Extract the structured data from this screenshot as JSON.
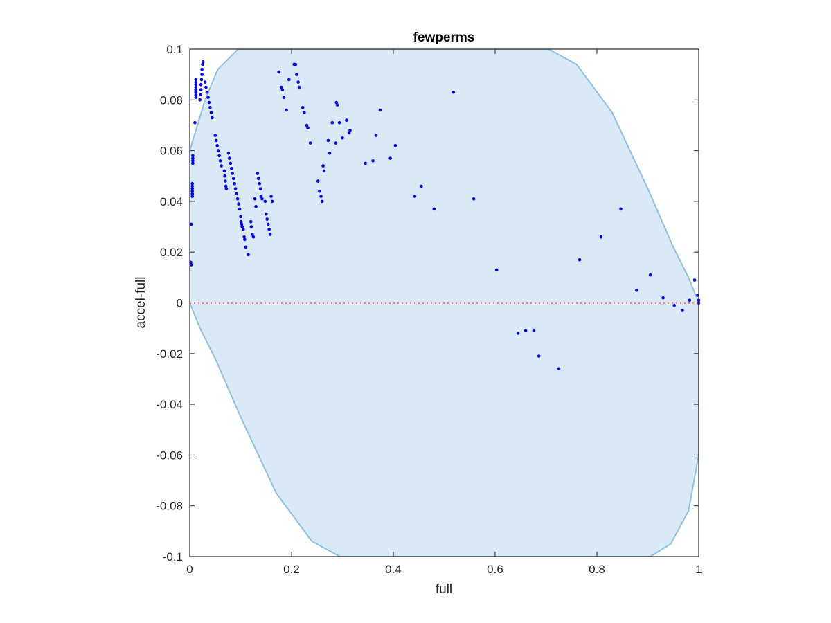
{
  "chart_data": {
    "type": "scatter",
    "title": "fewperms",
    "xlabel": "full",
    "ylabel": "accel-full",
    "xlim": [
      0,
      1
    ],
    "ylim": [
      -0.1,
      0.1
    ],
    "xticks": [
      0,
      0.2,
      0.4,
      0.6,
      0.8,
      1
    ],
    "xtick_labels": [
      "0",
      "0.2",
      "0.4",
      "0.6",
      "0.8",
      "1"
    ],
    "yticks": [
      -0.1,
      -0.08,
      -0.06,
      -0.04,
      -0.02,
      0,
      0.02,
      0.04,
      0.06,
      0.08,
      0.1
    ],
    "ytick_labels": [
      "-0.1",
      "-0.08",
      "-0.06",
      "-0.04",
      "-0.02",
      "0",
      "0.02",
      "0.04",
      "0.06",
      "0.08",
      "0.1"
    ],
    "grid": false,
    "colors": {
      "points": "#0000ee",
      "region_fill": "#d9e9f5",
      "region_edge": "#8dc0e2",
      "reference_line": "#e8403a",
      "axes": "#262626"
    },
    "reference_line": {
      "y": 0,
      "style": "dotted"
    },
    "region": {
      "description_free": true,
      "boundary": [
        [
          0.0,
          0.0
        ],
        [
          0.0,
          0.06
        ],
        [
          0.03,
          0.08
        ],
        [
          0.055,
          0.092
        ],
        [
          0.095,
          0.1
        ],
        [
          0.705,
          0.1
        ],
        [
          0.76,
          0.094
        ],
        [
          0.83,
          0.075
        ],
        [
          0.9,
          0.045
        ],
        [
          0.95,
          0.022
        ],
        [
          0.98,
          0.01
        ],
        [
          1.0,
          0.0
        ],
        [
          1.0,
          -0.06
        ],
        [
          0.98,
          -0.082
        ],
        [
          0.945,
          -0.095
        ],
        [
          0.905,
          -0.1
        ],
        [
          0.295,
          -0.1
        ],
        [
          0.24,
          -0.094
        ],
        [
          0.17,
          -0.075
        ],
        [
          0.1,
          -0.045
        ],
        [
          0.05,
          -0.022
        ],
        [
          0.02,
          -0.01
        ],
        [
          0.0,
          0.0
        ]
      ]
    },
    "series": [
      {
        "points": [
          [
            0.002,
            0.016
          ],
          [
            0.003,
            0.015
          ],
          [
            0.003,
            0.031
          ],
          [
            0.005,
            0.042
          ],
          [
            0.005,
            0.043
          ],
          [
            0.005,
            0.044
          ],
          [
            0.005,
            0.045
          ],
          [
            0.005,
            0.046
          ],
          [
            0.005,
            0.047
          ],
          [
            0.006,
            0.055
          ],
          [
            0.006,
            0.056
          ],
          [
            0.006,
            0.057
          ],
          [
            0.006,
            0.058
          ],
          [
            0.01,
            0.071
          ],
          [
            0.012,
            0.081
          ],
          [
            0.012,
            0.082
          ],
          [
            0.012,
            0.083
          ],
          [
            0.012,
            0.084
          ],
          [
            0.012,
            0.085
          ],
          [
            0.012,
            0.086
          ],
          [
            0.012,
            0.087
          ],
          [
            0.012,
            0.088
          ],
          [
            0.02,
            0.08
          ],
          [
            0.021,
            0.082
          ],
          [
            0.022,
            0.084
          ],
          [
            0.022,
            0.086
          ],
          [
            0.023,
            0.088
          ],
          [
            0.024,
            0.09
          ],
          [
            0.024,
            0.092
          ],
          [
            0.025,
            0.094
          ],
          [
            0.026,
            0.095
          ],
          [
            0.03,
            0.087
          ],
          [
            0.032,
            0.085
          ],
          [
            0.034,
            0.083
          ],
          [
            0.036,
            0.081
          ],
          [
            0.038,
            0.079
          ],
          [
            0.04,
            0.077
          ],
          [
            0.042,
            0.075
          ],
          [
            0.044,
            0.073
          ],
          [
            0.05,
            0.066
          ],
          [
            0.052,
            0.064
          ],
          [
            0.054,
            0.062
          ],
          [
            0.056,
            0.06
          ],
          [
            0.058,
            0.058
          ],
          [
            0.06,
            0.056
          ],
          [
            0.062,
            0.054
          ],
          [
            0.068,
            0.052
          ],
          [
            0.069,
            0.05
          ],
          [
            0.07,
            0.048
          ],
          [
            0.071,
            0.046
          ],
          [
            0.072,
            0.045
          ],
          [
            0.076,
            0.059
          ],
          [
            0.078,
            0.057
          ],
          [
            0.08,
            0.055
          ],
          [
            0.082,
            0.053
          ],
          [
            0.084,
            0.051
          ],
          [
            0.086,
            0.049
          ],
          [
            0.088,
            0.047
          ],
          [
            0.09,
            0.045
          ],
          [
            0.092,
            0.043
          ],
          [
            0.094,
            0.041
          ],
          [
            0.096,
            0.039
          ],
          [
            0.098,
            0.037
          ],
          [
            0.1,
            0.034
          ],
          [
            0.101,
            0.032
          ],
          [
            0.102,
            0.031
          ],
          [
            0.103,
            0.03
          ],
          [
            0.105,
            0.029
          ],
          [
            0.107,
            0.026
          ],
          [
            0.108,
            0.025
          ],
          [
            0.11,
            0.022
          ],
          [
            0.115,
            0.019
          ],
          [
            0.12,
            0.032
          ],
          [
            0.121,
            0.03
          ],
          [
            0.123,
            0.027
          ],
          [
            0.125,
            0.026
          ],
          [
            0.128,
            0.041
          ],
          [
            0.13,
            0.038
          ],
          [
            0.133,
            0.051
          ],
          [
            0.135,
            0.049
          ],
          [
            0.137,
            0.047
          ],
          [
            0.139,
            0.045
          ],
          [
            0.14,
            0.042
          ],
          [
            0.142,
            0.041
          ],
          [
            0.148,
            0.04
          ],
          [
            0.15,
            0.035
          ],
          [
            0.152,
            0.033
          ],
          [
            0.154,
            0.031
          ],
          [
            0.156,
            0.029
          ],
          [
            0.158,
            0.027
          ],
          [
            0.16,
            0.042
          ],
          [
            0.162,
            0.04
          ],
          [
            0.175,
            0.091
          ],
          [
            0.18,
            0.085
          ],
          [
            0.182,
            0.084
          ],
          [
            0.185,
            0.081
          ],
          [
            0.19,
            0.076
          ],
          [
            0.195,
            0.088
          ],
          [
            0.205,
            0.094
          ],
          [
            0.208,
            0.094
          ],
          [
            0.21,
            0.09
          ],
          [
            0.213,
            0.087
          ],
          [
            0.215,
            0.085
          ],
          [
            0.222,
            0.077
          ],
          [
            0.225,
            0.075
          ],
          [
            0.23,
            0.07
          ],
          [
            0.232,
            0.069
          ],
          [
            0.237,
            0.063
          ],
          [
            0.252,
            0.048
          ],
          [
            0.255,
            0.044
          ],
          [
            0.258,
            0.042
          ],
          [
            0.26,
            0.04
          ],
          [
            0.262,
            0.054
          ],
          [
            0.264,
            0.052
          ],
          [
            0.272,
            0.064
          ],
          [
            0.275,
            0.059
          ],
          [
            0.28,
            0.071
          ],
          [
            0.287,
            0.063
          ],
          [
            0.288,
            0.079
          ],
          [
            0.29,
            0.078
          ],
          [
            0.294,
            0.071
          ],
          [
            0.3,
            0.065
          ],
          [
            0.308,
            0.072
          ],
          [
            0.313,
            0.067
          ],
          [
            0.315,
            0.068
          ],
          [
            0.345,
            0.055
          ],
          [
            0.36,
            0.056
          ],
          [
            0.366,
            0.066
          ],
          [
            0.374,
            0.076
          ],
          [
            0.394,
            0.057
          ],
          [
            0.404,
            0.062
          ],
          [
            0.442,
            0.042
          ],
          [
            0.455,
            0.046
          ],
          [
            0.48,
            0.037
          ],
          [
            0.518,
            0.083
          ],
          [
            0.558,
            0.041
          ],
          [
            0.603,
            0.013
          ],
          [
            0.645,
            -0.012
          ],
          [
            0.66,
            -0.011
          ],
          [
            0.676,
            -0.011
          ],
          [
            0.686,
            -0.021
          ],
          [
            0.725,
            -0.026
          ],
          [
            0.766,
            0.017
          ],
          [
            0.808,
            0.026
          ],
          [
            0.847,
            0.037
          ],
          [
            0.878,
            0.005
          ],
          [
            0.905,
            0.011
          ],
          [
            0.93,
            0.002
          ],
          [
            0.952,
            -0.001
          ],
          [
            0.968,
            -0.003
          ],
          [
            0.982,
            0.001
          ],
          [
            0.992,
            0.009
          ],
          [
            0.998,
            0.003
          ],
          [
            1.0,
            0.001
          ],
          [
            1.0,
            0.0
          ]
        ]
      }
    ]
  }
}
